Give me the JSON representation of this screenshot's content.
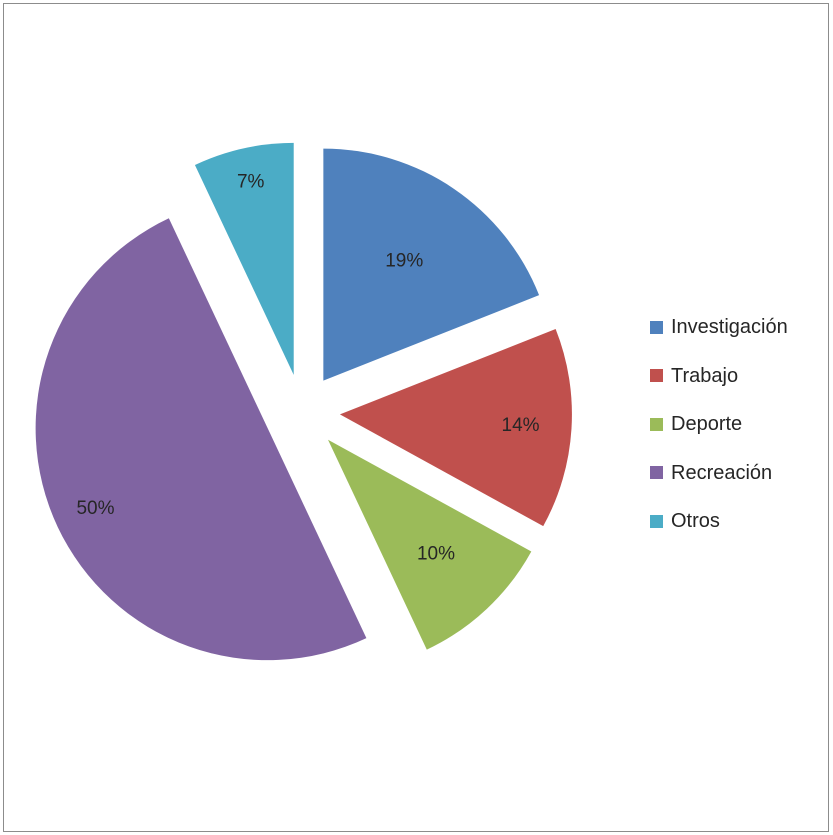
{
  "chart_data": {
    "type": "pie",
    "exploded": true,
    "legend_position": "right",
    "slices": [
      {
        "label": "Investigación",
        "value": 19,
        "data_label": "19%",
        "color": "#4F81BD"
      },
      {
        "label": "Trabajo",
        "value": 14,
        "data_label": "14%",
        "color": "#C0504D"
      },
      {
        "label": "Deporte",
        "value": 10,
        "data_label": "10%",
        "color": "#9BBB59"
      },
      {
        "label": "Recreación",
        "value": 50,
        "data_label": "50%",
        "color": "#8064A2"
      },
      {
        "label": "Otros",
        "value": 7,
        "data_label": "7%",
        "color": "#4BACC6"
      }
    ]
  }
}
